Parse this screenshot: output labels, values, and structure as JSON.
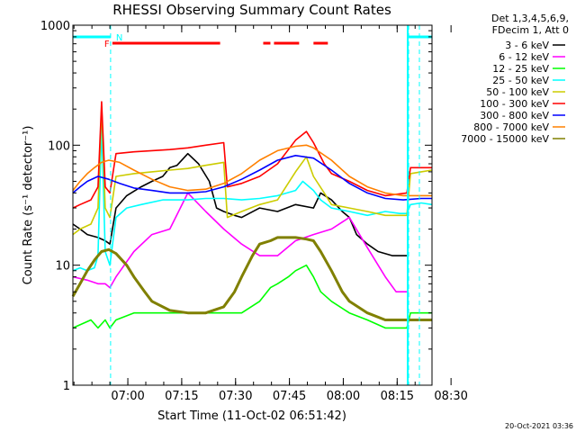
{
  "chart_data": {
    "type": "line",
    "title": "RHESSI Observing Summary Count Rates",
    "xlabel": "Start Time (11-Oct-02 06:51:42)",
    "ylabel": "Count Rate (s⁻¹ detector⁻¹)",
    "yscale": "log",
    "ylim": [
      1,
      1000
    ],
    "xlim_minutes": [
      -7,
      93
    ],
    "x_unit": "minutes after 06:51:42",
    "x_tick_labels": [
      "07:00",
      "07:15",
      "07:30",
      "07:45",
      "08:00",
      "08:15",
      "08:30"
    ],
    "y_tick_labels": [
      "1",
      "10",
      "100",
      "1000"
    ],
    "legend_header": [
      "Det 1,3,4,5,6,9,",
      "FDecim 1, Att 0"
    ],
    "legend_position": "right",
    "timestamp": "20-Oct-2021 03:36",
    "flags": {
      "N_label": "N",
      "F_label": "F",
      "N_color": "#00ffff",
      "F_color": "#ff0000",
      "night_segments": [
        [
          -7,
          3.5
        ],
        [
          86.5,
          93
        ]
      ],
      "flare_segments": [
        [
          4,
          34
        ],
        [
          46,
          48
        ],
        [
          49,
          56
        ],
        [
          60,
          64
        ]
      ],
      "saa_markers": [
        3.5,
        86.5
      ]
    },
    "series": [
      {
        "name": "3 - 6 keV",
        "color": "#000000",
        "x": [
          -7,
          -5,
          -3,
          0,
          2,
          3.3,
          5,
          8,
          12,
          15,
          18,
          20,
          22,
          25,
          28,
          31,
          33,
          35,
          38,
          40,
          45,
          50,
          55,
          60,
          62,
          65,
          68,
          70,
          72,
          75,
          78,
          82,
          86
        ],
        "y": [
          22,
          20,
          18,
          17,
          16,
          15,
          30,
          38,
          45,
          50,
          55,
          65,
          68,
          85,
          70,
          50,
          30,
          28,
          26,
          25,
          30,
          28,
          32,
          30,
          40,
          35,
          28,
          25,
          18,
          15,
          13,
          12,
          12
        ]
      },
      {
        "name": "6 - 12 keV",
        "color": "#ff00ff",
        "x": [
          -7,
          -3,
          0,
          2,
          3.3,
          5,
          10,
          15,
          20,
          25,
          30,
          35,
          40,
          45,
          50,
          55,
          60,
          65,
          70,
          75,
          80,
          83,
          86
        ],
        "y": [
          8,
          7.5,
          7,
          7,
          6.5,
          8,
          13,
          18,
          20,
          40,
          28,
          20,
          15,
          12,
          12,
          16,
          18,
          20,
          25,
          14,
          8,
          6,
          6
        ]
      },
      {
        "name": "12 - 25 keV",
        "color": "#00ff00",
        "x": [
          -7,
          -2,
          0,
          2,
          3.3,
          5,
          10,
          20,
          30,
          40,
          45,
          48,
          50,
          53,
          55,
          58,
          60,
          62,
          65,
          70,
          75,
          80,
          86,
          87,
          90,
          93
        ],
        "y": [
          3,
          3.5,
          3,
          3.5,
          3,
          3.5,
          4,
          4,
          4,
          4,
          5,
          6.5,
          7,
          8,
          9,
          10,
          8,
          6,
          5,
          4,
          3.5,
          3,
          3,
          4,
          4,
          4
        ]
      },
      {
        "name": "25 - 50 keV",
        "color": "#00ffff",
        "x": [
          -7,
          -5,
          -3,
          -1,
          0,
          1,
          2,
          3.3,
          5,
          8,
          12,
          18,
          25,
          30,
          35,
          40,
          45,
          50,
          55,
          57,
          60,
          62,
          65,
          70,
          75,
          80,
          84,
          86,
          87,
          90,
          93
        ],
        "y": [
          9,
          9.5,
          9,
          9.5,
          12,
          150,
          13,
          10,
          25,
          30,
          32,
          35,
          35,
          36,
          36,
          35,
          36,
          38,
          42,
          50,
          42,
          35,
          30,
          28,
          26,
          28,
          27,
          27,
          32,
          33,
          32
        ]
      },
      {
        "name": "50 - 100 keV",
        "color": "#cccc00",
        "x": [
          -7,
          -5,
          -2,
          0,
          1,
          2,
          3.3,
          5,
          10,
          15,
          20,
          25,
          30,
          35,
          36,
          40,
          45,
          50,
          55,
          58,
          60,
          63,
          65,
          70,
          75,
          80,
          86,
          87,
          90,
          93
        ],
        "y": [
          18,
          20,
          22,
          30,
          210,
          30,
          25,
          55,
          58,
          60,
          62,
          64,
          68,
          72,
          25,
          28,
          32,
          35,
          60,
          80,
          55,
          40,
          32,
          30,
          28,
          26,
          26,
          58,
          60,
          62
        ]
      },
      {
        "name": "100 - 300 keV",
        "color": "#ff0000",
        "x": [
          -7,
          -5,
          -2,
          0,
          1,
          2,
          3.3,
          5,
          10,
          15,
          20,
          25,
          30,
          35,
          36,
          40,
          45,
          50,
          55,
          58,
          60,
          63,
          65,
          70,
          75,
          80,
          86,
          87,
          90,
          93
        ],
        "y": [
          30,
          32,
          35,
          45,
          230,
          45,
          40,
          85,
          88,
          90,
          92,
          95,
          100,
          105,
          45,
          48,
          55,
          70,
          110,
          130,
          105,
          70,
          58,
          50,
          42,
          38,
          40,
          65,
          65,
          65
        ]
      },
      {
        "name": "300 - 800 keV",
        "color": "#0000ff",
        "x": [
          -7,
          -5,
          -3,
          0,
          3,
          6,
          10,
          15,
          20,
          25,
          30,
          35,
          40,
          45,
          50,
          55,
          60,
          65,
          70,
          75,
          80,
          85,
          90,
          93
        ],
        "y": [
          40,
          45,
          50,
          55,
          52,
          48,
          44,
          42,
          40,
          40,
          41,
          45,
          52,
          62,
          75,
          82,
          78,
          62,
          48,
          40,
          36,
          35,
          36,
          36
        ]
      },
      {
        "name": "800 - 7000 keV",
        "color": "#ff8000",
        "x": [
          -7,
          -5,
          -3,
          -1,
          1,
          3,
          6,
          10,
          15,
          20,
          25,
          30,
          35,
          40,
          45,
          50,
          55,
          58,
          60,
          65,
          70,
          75,
          80,
          85,
          90,
          93
        ],
        "y": [
          42,
          50,
          58,
          65,
          72,
          75,
          72,
          62,
          52,
          45,
          42,
          43,
          48,
          58,
          75,
          90,
          98,
          100,
          95,
          75,
          55,
          45,
          40,
          38,
          38,
          38
        ]
      },
      {
        "name": "7000 - 15000 keV",
        "color": "#808000",
        "x": [
          -7,
          -5,
          -3,
          -1,
          0,
          1,
          3,
          5,
          8,
          10,
          13,
          15,
          20,
          25,
          30,
          35,
          38,
          40,
          43,
          45,
          48,
          50,
          53,
          55,
          58,
          60,
          62,
          65,
          68,
          70,
          75,
          80,
          85,
          90,
          93
        ],
        "y": [
          5.5,
          7,
          9,
          11,
          12,
          13,
          13.5,
          12.5,
          10,
          8,
          6,
          5,
          4.2,
          4,
          4,
          4.5,
          6,
          8,
          12,
          15,
          16,
          17,
          17,
          17,
          16.5,
          16,
          13,
          9,
          6,
          5,
          4,
          3.5,
          3.5,
          3.5,
          3.5
        ]
      }
    ]
  }
}
